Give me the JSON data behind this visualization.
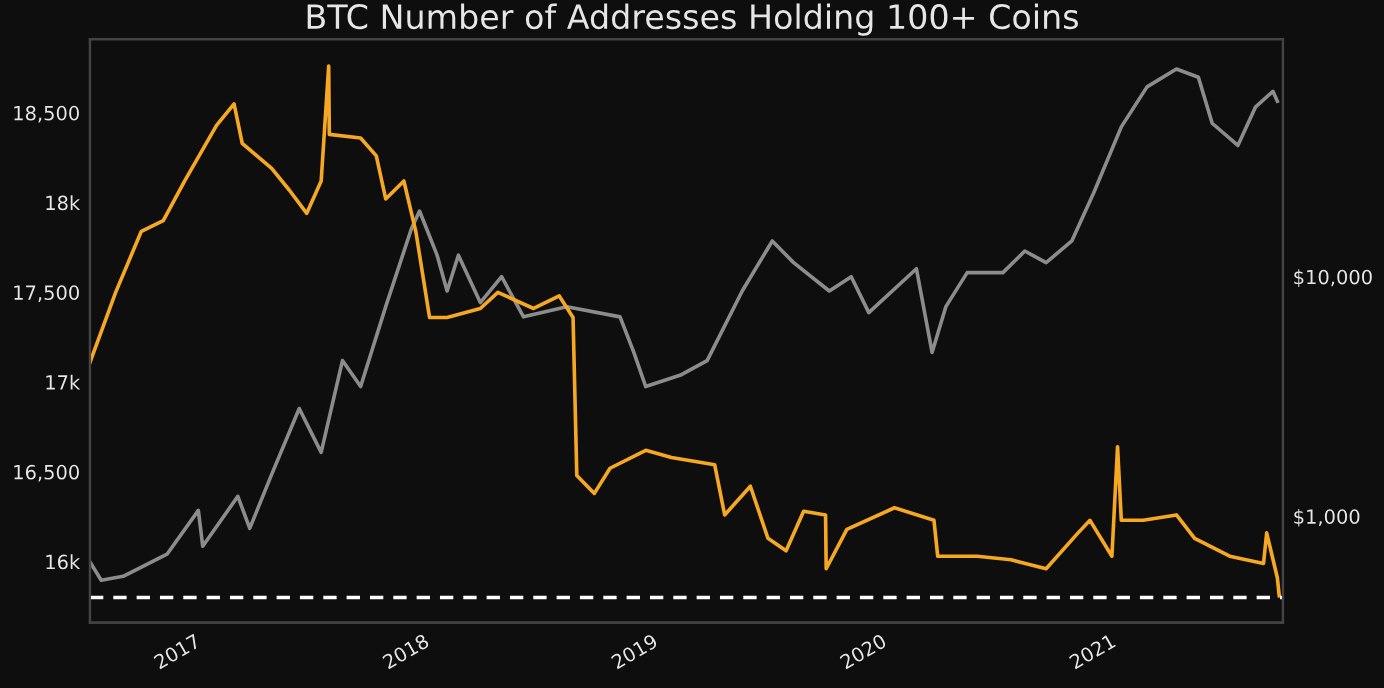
{
  "chart_data": {
    "type": "line",
    "title": "BTC Number of Addresses Holding 100+ Coins",
    "xlim": [
      "2016-07-18",
      "2021-10-04"
    ],
    "xticks": [
      {
        "value": "2017-01-01",
        "label": "2017"
      },
      {
        "value": "2018-01-01",
        "label": "2018"
      },
      {
        "value": "2019-01-01",
        "label": "2019"
      },
      {
        "value": "2020-01-01",
        "label": "2020"
      },
      {
        "value": "2021-01-01",
        "label": "2021"
      }
    ],
    "ylim": [
      15660,
      18910
    ],
    "yticks": [
      {
        "value": 16000,
        "label": "16k"
      },
      {
        "value": 16500,
        "label": "16,500"
      },
      {
        "value": 17000,
        "label": "17k"
      },
      {
        "value": 17500,
        "label": "17,500"
      },
      {
        "value": 18000,
        "label": "18k"
      },
      {
        "value": 18500,
        "label": "18,500"
      }
    ],
    "y2lim": [
      360,
      98000
    ],
    "y2ticks": [
      {
        "value": 1000,
        "label": "$1,000"
      },
      {
        "value": 10000,
        "label": "$10,000"
      }
    ],
    "log": "y2",
    "grid": false,
    "legend": false,
    "marker": "none",
    "line_style": "solid",
    "ref_lines": [
      {
        "axis": "y",
        "value": 15800,
        "color": "#ffffff",
        "line_style": "dashed"
      }
    ],
    "series": [
      {
        "color": "#8c8c8c",
        "axis": "y2",
        "x": [
          "2016-07-18",
          "2016-08-05",
          "2016-09-09",
          "2016-11-18",
          "2017-01-07",
          "2017-01-14",
          "2017-03-11",
          "2017-03-30",
          "2017-05-04",
          "2017-06-17",
          "2017-07-22",
          "2017-08-25",
          "2017-09-23",
          "2017-11-02",
          "2017-12-13",
          "2017-12-26",
          "2018-01-23",
          "2018-02-08",
          "2018-02-26",
          "2018-04-02",
          "2018-05-06",
          "2018-06-10",
          "2018-08-18",
          "2018-11-11",
          "2018-12-03",
          "2018-12-22",
          "2019-02-17",
          "2019-03-30",
          "2019-05-25",
          "2019-07-12",
          "2019-08-15",
          "2019-10-11",
          "2019-11-15",
          "2019-12-13",
          "2020-02-27",
          "2020-03-23",
          "2020-04-14",
          "2020-05-18",
          "2020-07-14",
          "2020-08-18",
          "2020-09-21",
          "2020-11-01",
          "2020-12-06",
          "2021-01-19",
          "2021-03-01",
          "2021-04-17",
          "2021-05-22",
          "2021-06-13",
          "2021-07-24",
          "2021-08-21",
          "2021-09-18",
          "2021-09-25"
        ],
        "values": [
          645,
          541,
          562,
          695,
          1059,
          750,
          1212,
          891,
          1496,
          2818,
          1848,
          4467,
          3480,
          7500,
          15850,
          18800,
          12300,
          8720,
          12300,
          7800,
          10000,
          6800,
          7500,
          6800,
          4830,
          3480,
          3900,
          4467,
          8720,
          14100,
          11450,
          8720,
          10000,
          7080,
          10800,
          4830,
          7500,
          10400,
          10400,
          12800,
          11450,
          14100,
          22400,
          42200,
          62000,
          73600,
          68000,
          43700,
          35300,
          51000,
          59400,
          54000
        ]
      },
      {
        "color": "#f7a823",
        "x": [
          "2016-07-18",
          "2016-08-28",
          "2016-10-08",
          "2016-11-12",
          "2016-12-16",
          "2017-02-05",
          "2017-03-05",
          "2017-03-18",
          "2017-05-04",
          "2017-06-01",
          "2017-06-29",
          "2017-07-22",
          "2017-08-03",
          "2017-08-04",
          "2017-09-23",
          "2017-10-18",
          "2017-11-02",
          "2017-12-01",
          "2017-12-20",
          "2018-01-11",
          "2018-02-08",
          "2018-04-02",
          "2018-04-30",
          "2018-06-26",
          "2018-08-06",
          "2018-08-28",
          "2018-09-03",
          "2018-10-01",
          "2018-10-26",
          "2018-12-22",
          "2019-02-01",
          "2019-04-11",
          "2019-04-27",
          "2019-06-07",
          "2019-07-05",
          "2019-08-03",
          "2019-08-31",
          "2019-10-05",
          "2019-10-06",
          "2019-11-08",
          "2020-01-23",
          "2020-03-26",
          "2020-04-01",
          "2020-06-03",
          "2020-07-27",
          "2020-09-21",
          "2020-11-11",
          "2020-11-30",
          "2021-01-04",
          "2021-01-13",
          "2021-01-19",
          "2021-02-23",
          "2021-04-17",
          "2021-05-16",
          "2021-07-11",
          "2021-09-03",
          "2021-09-08",
          "2021-09-25",
          "2021-09-28"
        ],
        "values": [
          17110,
          17500,
          17840,
          17900,
          18120,
          18430,
          18550,
          18330,
          18190,
          18070,
          17940,
          18120,
          18760,
          18380,
          18360,
          18260,
          18020,
          18120,
          17840,
          17360,
          17360,
          17410,
          17500,
          17410,
          17480,
          17360,
          16480,
          16380,
          16520,
          16620,
          16580,
          16540,
          16260,
          16420,
          16130,
          16060,
          16280,
          16260,
          15960,
          16180,
          16300,
          16230,
          16030,
          16030,
          16010,
          15960,
          16160,
          16230,
          16030,
          16640,
          16230,
          16230,
          16260,
          16130,
          16030,
          15990,
          16160,
          15910,
          15810
        ]
      }
    ]
  }
}
